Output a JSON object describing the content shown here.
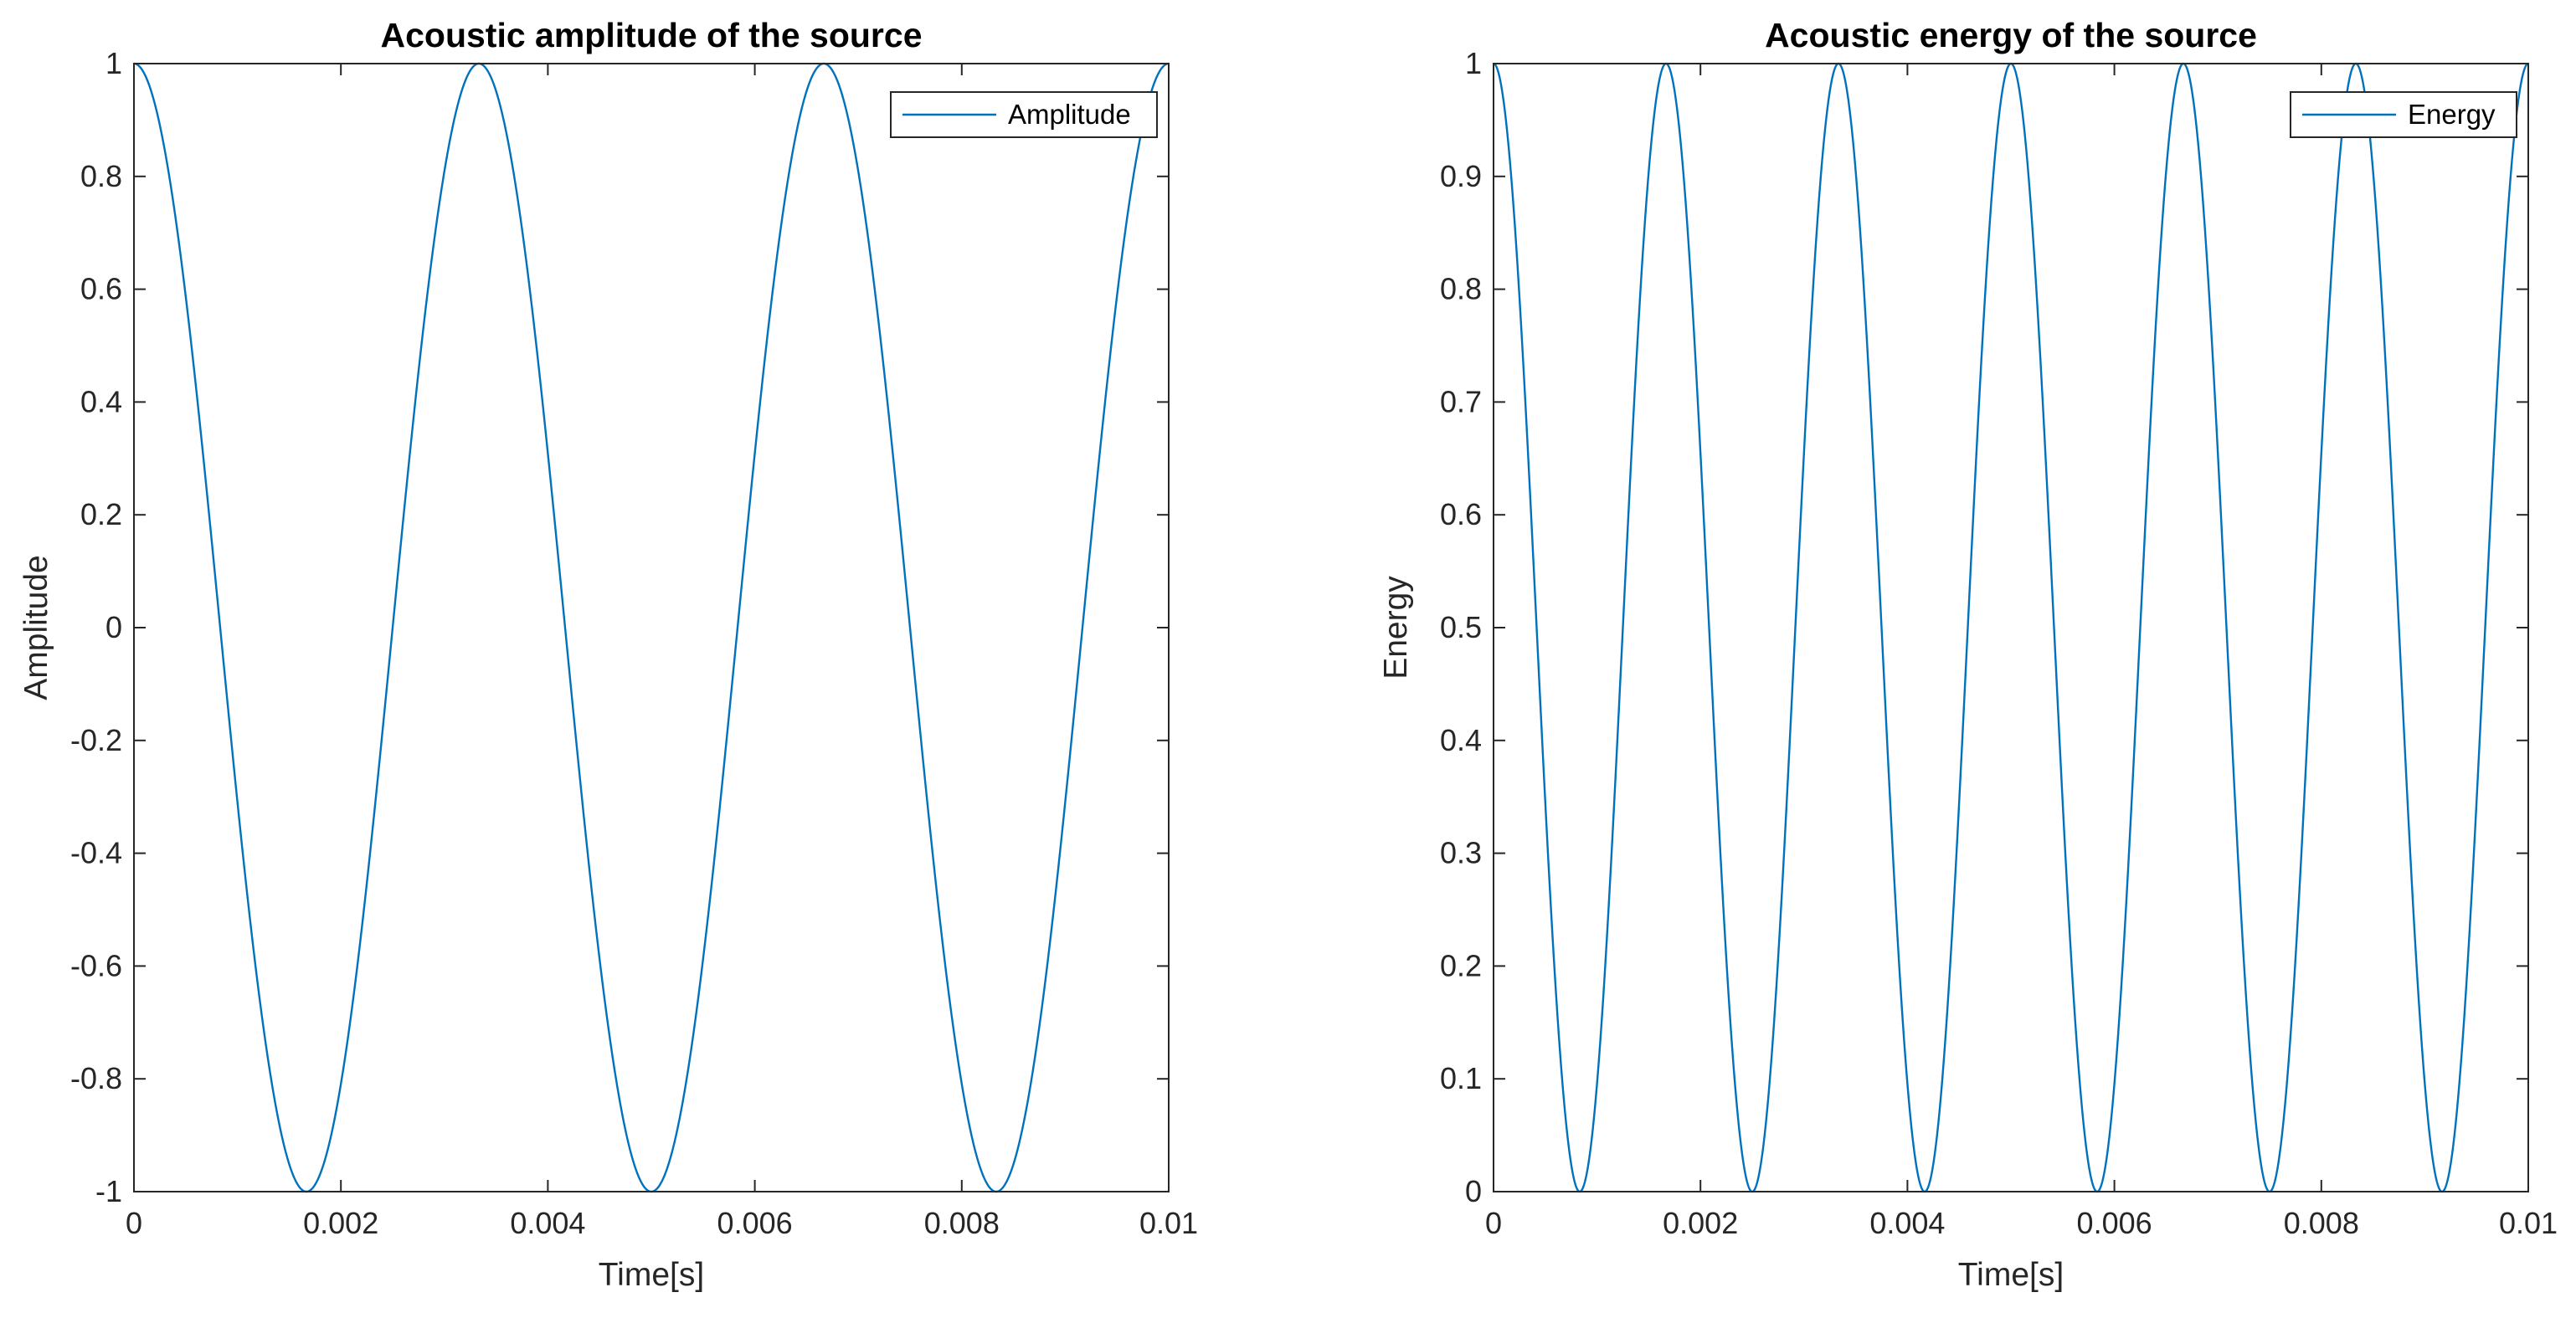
{
  "chart_data": [
    {
      "type": "line",
      "title": "Acoustic amplitude of the source",
      "xlabel": "Time[s]",
      "ylabel": "Amplitude",
      "xlim": [
        0,
        0.01
      ],
      "ylim": [
        -1,
        1
      ],
      "xticks": [
        0,
        0.002,
        0.004,
        0.006,
        0.008,
        0.01
      ],
      "xtick_labels": [
        "0",
        "0.002",
        "0.004",
        "0.006",
        "0.008",
        "0.01"
      ],
      "yticks": [
        -1,
        -0.8,
        -0.6,
        -0.4,
        -0.2,
        0,
        0.2,
        0.4,
        0.6,
        0.8,
        1
      ],
      "ytick_labels": [
        "-1",
        "-0.8",
        "-0.6",
        "-0.4",
        "-0.2",
        "0",
        "0.2",
        "0.4",
        "0.6",
        "0.8",
        "1"
      ],
      "grid": false,
      "legend_position": "top-right",
      "series": [
        {
          "name": "Amplitude",
          "color": "#0072BD",
          "function": "cos(2*pi*300*t)",
          "x": [
            0,
            0.0005,
            0.001,
            0.0015,
            0.001667,
            0.002,
            0.0025,
            0.003,
            0.003333,
            0.0035,
            0.004,
            0.0045,
            0.005,
            0.0055,
            0.006,
            0.0065,
            0.006667,
            0.007,
            0.0075,
            0.008,
            0.008333,
            0.0085,
            0.009,
            0.0095,
            0.01
          ],
          "y": [
            1,
            0.588,
            -0.309,
            -0.951,
            -1,
            -0.809,
            0,
            0.809,
            1,
            0.951,
            0.309,
            -0.588,
            -1,
            -0.588,
            0.309,
            0.951,
            1,
            0.809,
            0,
            -0.809,
            -1,
            -0.951,
            -0.309,
            0.588,
            1
          ]
        }
      ]
    },
    {
      "type": "line",
      "title": "Acoustic energy of the source",
      "xlabel": "Time[s]",
      "ylabel": "Energy",
      "xlim": [
        0,
        0.01
      ],
      "ylim": [
        0,
        1
      ],
      "xticks": [
        0,
        0.002,
        0.004,
        0.006,
        0.008,
        0.01
      ],
      "xtick_labels": [
        "0",
        "0.002",
        "0.004",
        "0.006",
        "0.008",
        "0.01"
      ],
      "yticks": [
        0,
        0.1,
        0.2,
        0.3,
        0.4,
        0.5,
        0.6,
        0.7,
        0.8,
        0.9,
        1
      ],
      "ytick_labels": [
        "0",
        "0.1",
        "0.2",
        "0.3",
        "0.4",
        "0.5",
        "0.6",
        "0.7",
        "0.8",
        "0.9",
        "1"
      ],
      "grid": false,
      "legend_position": "top-right",
      "series": [
        {
          "name": "Energy",
          "color": "#0072BD",
          "function": "cos(2*pi*300*t)^2",
          "x": [
            0,
            0.000833,
            0.001667,
            0.0025,
            0.003333,
            0.004167,
            0.005,
            0.005833,
            0.006667,
            0.0075,
            0.008333,
            0.009167,
            0.01
          ],
          "y": [
            1,
            0,
            1,
            0,
            1,
            0,
            1,
            0,
            1,
            0,
            1,
            0,
            1
          ]
        }
      ]
    }
  ]
}
